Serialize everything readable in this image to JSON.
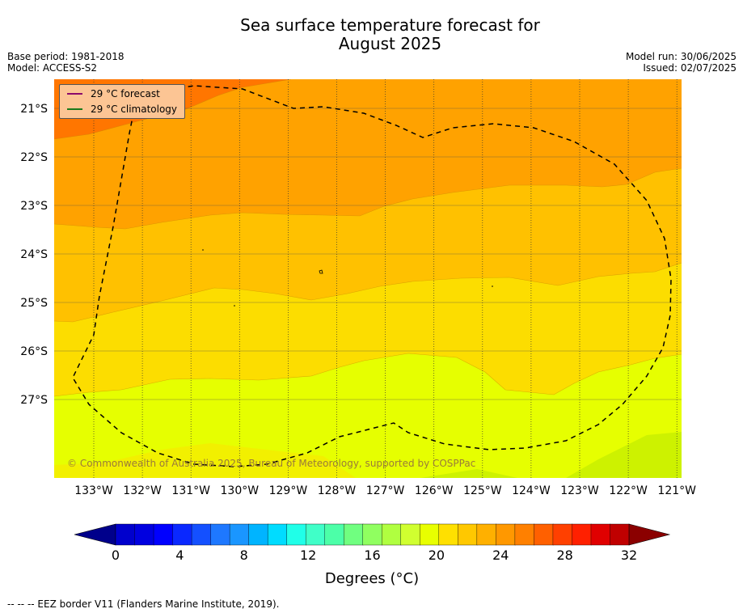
{
  "title_line1": "Sea surface temperature forecast for",
  "title_line2": "August 2025",
  "base_period": "Base period: 1981-2018",
  "model": "Model: ACCESS-S2",
  "model_run": "Model run: 30/06/2025",
  "issued": "Issued: 02/07/2025",
  "legend": {
    "forecast_label": "29 °C  forecast",
    "forecast_color": "#8b0a6b",
    "climatology_label": "29 °C  climatology",
    "climatology_color": "#1a7a1a"
  },
  "copyright": "© Commonwealth of Australia 2025, Bureau of Meteorology, supported by COSPPac",
  "lat_labels": [
    "21°S",
    "22°S",
    "23°S",
    "24°S",
    "25°S",
    "26°S",
    "27°S"
  ],
  "lon_labels": [
    "133°W",
    "132°W",
    "131°W",
    "130°W",
    "129°W",
    "128°W",
    "127°W",
    "126°W",
    "125°W",
    "124°W",
    "123°W",
    "122°W",
    "121°W"
  ],
  "colorbar": {
    "ticks": [
      "0",
      "4",
      "8",
      "12",
      "16",
      "20",
      "24",
      "28",
      "32"
    ],
    "units": "Degrees (°C)",
    "colors": [
      "#00008b",
      "#0000cd",
      "#0000e0",
      "#0000ff",
      "#0a28ff",
      "#1450ff",
      "#1e78ff",
      "#1a96ff",
      "#00b4ff",
      "#00dcff",
      "#20ffe8",
      "#40ffc8",
      "#4cffa8",
      "#70ff80",
      "#90ff60",
      "#b0ff40",
      "#d0ff30",
      "#e8ff00",
      "#ffe000",
      "#ffc800",
      "#ffb000",
      "#ff9800",
      "#ff8000",
      "#ff6000",
      "#ff4000",
      "#ff2000",
      "#e00000",
      "#c00000",
      "#8b0000"
    ]
  },
  "footnote": "--  --  -- EEZ border V11 (Flanders Marine Institute, 2019).",
  "colors": {
    "band_26_27": "#fe8a00",
    "band_25_26": "#ffa200",
    "band_24_25": "#ffc100",
    "band_23_24": "#fcdd00",
    "band_22_23": "#e6ff00"
  }
}
